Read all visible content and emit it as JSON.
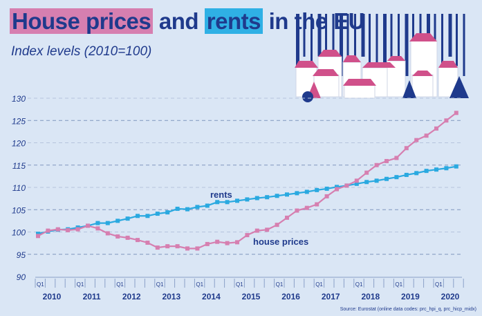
{
  "header": {
    "title_part1": "House prices",
    "title_part2": " and ",
    "title_part3": "rents",
    "title_part4": " in the EU",
    "subtitle": "Index levels (2010=100)"
  },
  "source": "Source: Eurostat (online data codes: prc_hpi_q, prc_hicp_midx)",
  "colors": {
    "house_prices": "#d67fb0",
    "rents": "#2aa9e0",
    "text": "#1f3a8c",
    "background": "#dae6f5"
  },
  "chart_data": {
    "type": "line",
    "title": "House prices and rents in the EU",
    "ylabel": "Index levels (2010=100)",
    "ylim": [
      90,
      130
    ],
    "yticks": [
      90,
      95,
      100,
      105,
      110,
      115,
      120,
      125,
      130
    ],
    "grid": true,
    "x_start": "2010Q1",
    "x_end": "2020Q3",
    "years": [
      "2010",
      "2011",
      "2012",
      "2013",
      "2014",
      "2015",
      "2016",
      "2017",
      "2018",
      "2019",
      "2020"
    ],
    "quarter_label": "Q1",
    "series": [
      {
        "name": "rents",
        "values": [
          99.6,
          100.1,
          100.5,
          100.6,
          101.0,
          101.4,
          102.0,
          102.0,
          102.5,
          103.0,
          103.6,
          103.6,
          104.1,
          104.4,
          105.2,
          105.1,
          105.6,
          105.9,
          106.7,
          106.7,
          107.0,
          107.3,
          107.6,
          107.8,
          108.1,
          108.4,
          108.7,
          109.0,
          109.4,
          109.7,
          110.1,
          110.4,
          110.8,
          111.2,
          111.5,
          111.9,
          112.3,
          112.8,
          113.2,
          113.7,
          114.0,
          114.3,
          114.7
        ]
      },
      {
        "name": "house prices",
        "values": [
          99.1,
          100.3,
          100.6,
          100.4,
          100.6,
          101.4,
          100.8,
          99.7,
          99.0,
          98.7,
          98.2,
          97.6,
          96.5,
          96.8,
          96.8,
          96.3,
          96.3,
          97.3,
          97.8,
          97.5,
          97.7,
          99.3,
          100.3,
          100.5,
          101.6,
          103.2,
          104.8,
          105.4,
          106.2,
          108.0,
          109.6,
          110.4,
          111.5,
          113.3,
          115.0,
          115.9,
          116.6,
          118.8,
          120.6,
          121.6,
          123.2,
          125.0,
          126.7
        ]
      }
    ]
  }
}
